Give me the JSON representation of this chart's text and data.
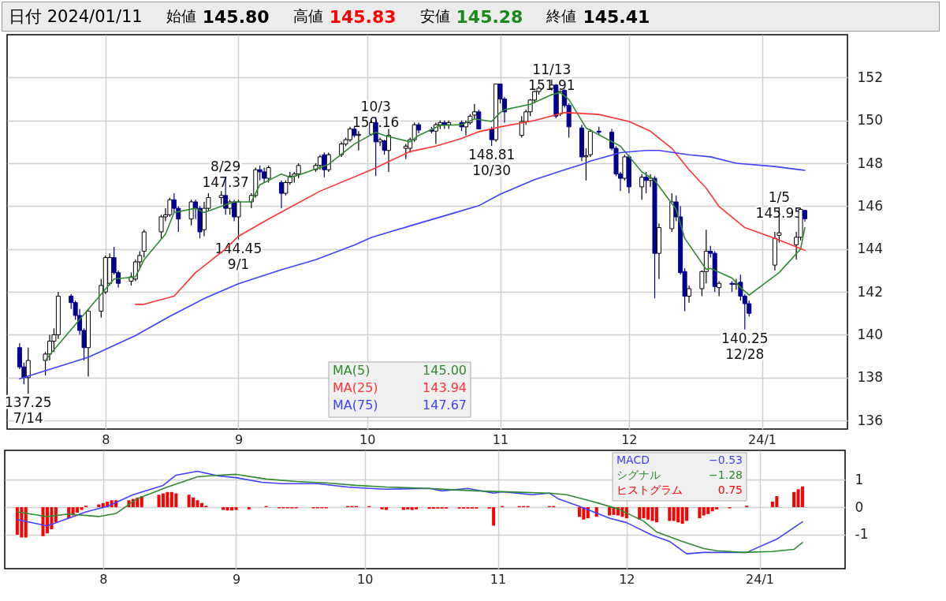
{
  "chart_data": [
    {
      "type": "candlestick",
      "title": "日付 2024/01/11",
      "subtitle": "始値 145.80 高値 145.83 安値 145.28 終値 145.41",
      "x": [
        "2023-07-12",
        "2023-07-13",
        "2023-07-14",
        "2023-07-18",
        "2023-07-19",
        "2023-07-20",
        "2023-07-21",
        "2023-07-24",
        "2023-07-25",
        "2023-07-26",
        "2023-07-27",
        "2023-07-28",
        "2023-07-31",
        "2023-08-01",
        "2023-08-02",
        "2023-08-03",
        "2023-08-04",
        "2023-08-07",
        "2023-08-08",
        "2023-08-09",
        "2023-08-10",
        "2023-08-14",
        "2023-08-15",
        "2023-08-16",
        "2023-08-17",
        "2023-08-18",
        "2023-08-21",
        "2023-08-22",
        "2023-08-23",
        "2023-08-24",
        "2023-08-25",
        "2023-08-28",
        "2023-08-29",
        "2023-08-30",
        "2023-08-31",
        "2023-09-01",
        "2023-09-04",
        "2023-09-05",
        "2023-09-06",
        "2023-09-07",
        "2023-09-08",
        "2023-09-11",
        "2023-09-12",
        "2023-09-13",
        "2023-09-14",
        "2023-09-15",
        "2023-09-19",
        "2023-09-20",
        "2023-09-21",
        "2023-09-22",
        "2023-09-25",
        "2023-09-26",
        "2023-09-27",
        "2023-09-28",
        "2023-09-29",
        "2023-10-02",
        "2023-10-03",
        "2023-10-04",
        "2023-10-05",
        "2023-10-06",
        "2023-10-10",
        "2023-10-11",
        "2023-10-12",
        "2023-10-13",
        "2023-10-16",
        "2023-10-17",
        "2023-10-18",
        "2023-10-19",
        "2023-10-20",
        "2023-10-23",
        "2023-10-24",
        "2023-10-25",
        "2023-10-26",
        "2023-10-27",
        "2023-10-30",
        "2023-10-31",
        "2023-11-01",
        "2023-11-02",
        "2023-11-06",
        "2023-11-07",
        "2023-11-08",
        "2023-11-09",
        "2023-11-10",
        "2023-11-13",
        "2023-11-14",
        "2023-11-15",
        "2023-11-16",
        "2023-11-17",
        "2023-11-20",
        "2023-11-21",
        "2023-11-22",
        "2023-11-24",
        "2023-11-27",
        "2023-11-28",
        "2023-11-29",
        "2023-11-30",
        "2023-12-01",
        "2023-12-04",
        "2023-12-05",
        "2023-12-06",
        "2023-12-07",
        "2023-12-08",
        "2023-12-11",
        "2023-12-12",
        "2023-12-13",
        "2023-12-14",
        "2023-12-15",
        "2023-12-18",
        "2023-12-19",
        "2023-12-20",
        "2023-12-21",
        "2023-12-22",
        "2023-12-25",
        "2023-12-26",
        "2023-12-27",
        "2023-12-28",
        "2023-12-29",
        "2024-01-04",
        "2024-01-05",
        "2024-01-09",
        "2024-01-10",
        "2024-01-11"
      ],
      "ohlc": [
        [
          139.4,
          139.6,
          138.4,
          138.5
        ],
        [
          138.5,
          138.7,
          137.7,
          138.0
        ],
        [
          138.0,
          139.4,
          137.25,
          138.8
        ],
        [
          138.8,
          139.2,
          138.1,
          139.1
        ],
        [
          139.1,
          140.0,
          138.8,
          139.7
        ],
        [
          139.7,
          140.3,
          139.2,
          140.0
        ],
        [
          140.0,
          142.0,
          139.8,
          141.8
        ],
        [
          141.8,
          141.9,
          141.2,
          141.5
        ],
        [
          141.5,
          141.6,
          140.7,
          140.9
        ],
        [
          140.9,
          141.2,
          140.0,
          140.2
        ],
        [
          140.2,
          140.3,
          138.8,
          139.4
        ],
        [
          139.4,
          141.2,
          138.05,
          141.1
        ],
        [
          141.1,
          142.6,
          140.8,
          142.3
        ],
        [
          142.0,
          143.7,
          141.9,
          143.6
        ],
        [
          142.4,
          143.8,
          142.3,
          143.6
        ],
        [
          143.6,
          144.1,
          142.8,
          142.9
        ],
        [
          142.9,
          143.0,
          142.2,
          142.4
        ],
        [
          142.5,
          142.9,
          142.3,
          142.7
        ],
        [
          142.6,
          143.5,
          142.5,
          143.4
        ],
        [
          143.4,
          143.9,
          143.1,
          143.7
        ],
        [
          143.9,
          144.9,
          143.6,
          144.8
        ],
        [
          144.8,
          145.6,
          144.5,
          145.5
        ],
        [
          145.5,
          145.9,
          145.3,
          145.6
        ],
        [
          145.6,
          146.4,
          145.5,
          146.3
        ],
        [
          146.3,
          146.6,
          145.7,
          145.9
        ],
        [
          145.9,
          146.0,
          144.8,
          145.4
        ],
        [
          145.4,
          146.3,
          145.1,
          146.2
        ],
        [
          146.2,
          146.3,
          145.4,
          145.9
        ],
        [
          145.9,
          146.0,
          144.5,
          144.8
        ],
        [
          144.9,
          146.2,
          144.6,
          145.9
        ],
        [
          145.9,
          146.6,
          145.8,
          146.4
        ],
        [
          146.4,
          146.7,
          146.1,
          146.5
        ],
        [
          146.5,
          147.37,
          145.6,
          145.9
        ],
        [
          145.9,
          146.3,
          145.6,
          146.2
        ],
        [
          146.2,
          146.3,
          145.3,
          145.5
        ],
        [
          145.5,
          146.3,
          144.45,
          146.2
        ],
        [
          146.2,
          146.6,
          145.9,
          146.5
        ],
        [
          146.5,
          147.8,
          146.4,
          147.7
        ],
        [
          147.7,
          147.9,
          147.2,
          147.6
        ],
        [
          147.6,
          147.8,
          147.1,
          147.3
        ],
        [
          147.3,
          147.9,
          147.1,
          147.8
        ],
        [
          147.1,
          147.2,
          145.9,
          146.6
        ],
        [
          146.6,
          147.2,
          146.5,
          147.1
        ],
        [
          147.1,
          147.6,
          147.0,
          147.4
        ],
        [
          147.4,
          147.6,
          147.1,
          147.5
        ],
        [
          147.5,
          148.0,
          147.3,
          147.9
        ],
        [
          147.7,
          148.0,
          147.6,
          147.9
        ],
        [
          147.9,
          148.4,
          147.7,
          148.3
        ],
        [
          148.4,
          148.5,
          147.35,
          147.7
        ],
        [
          147.7,
          148.5,
          147.6,
          148.4
        ],
        [
          148.4,
          149.0,
          148.3,
          148.9
        ],
        [
          148.9,
          149.2,
          148.8,
          149.1
        ],
        [
          149.1,
          149.7,
          149.0,
          149.6
        ],
        [
          149.6,
          149.7,
          149.2,
          149.3
        ],
        [
          149.3,
          149.5,
          148.6,
          149.35
        ],
        [
          149.35,
          150.0,
          149.3,
          149.9
        ],
        [
          149.9,
          150.16,
          147.4,
          149.0
        ],
        [
          149.0,
          149.2,
          148.8,
          149.1
        ],
        [
          149.05,
          149.1,
          148.4,
          148.6
        ],
        [
          148.6,
          149.6,
          147.6,
          149.3
        ],
        [
          148.7,
          148.9,
          148.2,
          148.8
        ],
        [
          148.7,
          149.2,
          148.5,
          149.1
        ],
        [
          149.1,
          149.9,
          149.0,
          149.8
        ],
        [
          149.8,
          149.9,
          149.4,
          149.55
        ],
        [
          149.55,
          149.7,
          149.4,
          149.5
        ],
        [
          149.5,
          149.9,
          148.9,
          149.8
        ],
        [
          149.8,
          150.0,
          149.6,
          149.9
        ],
        [
          149.9,
          150.0,
          149.6,
          149.8
        ],
        [
          149.8,
          150.0,
          149.6,
          149.9
        ],
        [
          149.9,
          150.0,
          149.5,
          149.7
        ],
        [
          149.7,
          150.0,
          149.3,
          149.9
        ],
        [
          149.9,
          150.3,
          149.8,
          150.2
        ],
        [
          150.25,
          150.77,
          150.1,
          150.4
        ],
        [
          150.4,
          150.5,
          149.6,
          149.6
        ],
        [
          149.6,
          149.7,
          148.81,
          149.1
        ],
        [
          149.1,
          151.7,
          149.0,
          151.7
        ],
        [
          151.7,
          151.7,
          150.8,
          151.0
        ],
        [
          151.0,
          151.1,
          149.9,
          150.4
        ],
        [
          149.3,
          150.2,
          149.2,
          149.95
        ],
        [
          149.95,
          150.5,
          149.8,
          150.4
        ],
        [
          150.4,
          151.0,
          150.2,
          150.95
        ],
        [
          150.95,
          151.4,
          150.8,
          151.35
        ],
        [
          151.35,
          151.6,
          151.2,
          151.5
        ],
        [
          151.5,
          151.91,
          151.4,
          151.65
        ],
        [
          151.65,
          151.7,
          150.1,
          150.2
        ],
        [
          150.3,
          151.4,
          150.2,
          151.35
        ],
        [
          151.4,
          151.45,
          150.6,
          150.7
        ],
        [
          150.7,
          150.8,
          149.2,
          149.7
        ],
        [
          149.65,
          149.8,
          148.1,
          148.3
        ],
        [
          148.3,
          148.7,
          147.2,
          148.35
        ],
        [
          148.4,
          149.6,
          148.3,
          149.5
        ],
        [
          149.5,
          149.7,
          149.3,
          149.45
        ],
        [
          149.45,
          149.6,
          148.6,
          148.7
        ],
        [
          148.7,
          148.8,
          147.4,
          147.5
        ],
        [
          147.5,
          147.6,
          146.7,
          147.3
        ],
        [
          147.3,
          148.4,
          147.2,
          148.3
        ],
        [
          148.3,
          148.4,
          146.6,
          146.9
        ],
        [
          146.9,
          147.5,
          146.3,
          147.35
        ],
        [
          147.35,
          147.6,
          146.6,
          147.2
        ],
        [
          147.2,
          147.5,
          146.9,
          147.3
        ],
        [
          147.3,
          147.4,
          141.7,
          143.8
        ],
        [
          143.8,
          145.2,
          142.6,
          145.0
        ],
        [
          144.95,
          146.6,
          144.8,
          146.2
        ],
        [
          146.2,
          146.5,
          145.3,
          145.5
        ],
        [
          145.5,
          146.0,
          142.8,
          142.9
        ],
        [
          142.95,
          143.1,
          141.1,
          141.8
        ],
        [
          141.8,
          142.3,
          141.5,
          142.15
        ],
        [
          142.15,
          143.0,
          141.8,
          142.95
        ],
        [
          142.95,
          144.9,
          142.4,
          143.9
        ],
        [
          143.9,
          144.15,
          143.6,
          143.8
        ],
        [
          143.8,
          143.9,
          142.0,
          142.25
        ],
        [
          142.2,
          142.5,
          141.8,
          142.4
        ],
        [
          142.4,
          142.5,
          142.0,
          142.35
        ],
        [
          142.35,
          142.6,
          142.1,
          142.4
        ],
        [
          142.45,
          142.8,
          141.6,
          141.8
        ],
        [
          141.8,
          141.9,
          140.25,
          141.45
        ],
        [
          141.45,
          141.6,
          140.85,
          141.0
        ],
        [
          143.25,
          144.8,
          143.0,
          144.5
        ],
        [
          144.64,
          145.95,
          144.3,
          144.76
        ],
        [
          144.2,
          144.8,
          143.5,
          144.55
        ],
        [
          144.55,
          145.9,
          144.4,
          145.85
        ],
        [
          145.8,
          145.83,
          145.28,
          145.41
        ]
      ],
      "series": [
        {
          "type": "line",
          "name": "MA(5)",
          "color": "#2e8b2e",
          "x": [
            "2023-07-18",
            "2023-07-20",
            "2023-08-03",
            "2023-08-08",
            "2023-08-10",
            "2023-08-15",
            "2023-08-17",
            "2023-08-22",
            "2023-08-24",
            "2023-08-28",
            "2023-08-31",
            "2023-09-04",
            "2023-09-06",
            "2023-09-11",
            "2023-09-13",
            "2023-09-15",
            "2023-09-22",
            "2023-09-28",
            "2023-10-03",
            "2023-10-05",
            "2023-10-11",
            "2023-10-13",
            "2023-10-18",
            "2023-10-23",
            "2023-10-26",
            "2023-10-30",
            "2023-11-01",
            "2023-11-02",
            "2023-11-08",
            "2023-11-13",
            "2023-11-15",
            "2023-11-17",
            "2023-11-21",
            "2023-11-29",
            "2023-12-04",
            "2023-12-06",
            "2023-12-07",
            "2023-12-12",
            "2023-12-14",
            "2023-12-19",
            "2023-12-20",
            "2023-12-25",
            "2023-12-27",
            "2023-12-29",
            "2024-01-05",
            "2024-01-10",
            "2024-01-11"
          ],
          "values": [
            138.8,
            139.3,
            142.6,
            142.7,
            143.5,
            144.7,
            145.7,
            145.9,
            145.7,
            146.0,
            146.2,
            146.2,
            147.0,
            147.5,
            147.35,
            147.45,
            147.95,
            148.9,
            149.45,
            149.3,
            149.0,
            149.3,
            149.77,
            149.8,
            150.07,
            149.95,
            150.37,
            150.5,
            150.75,
            151.2,
            151.3,
            150.98,
            149.65,
            148.8,
            147.6,
            147.35,
            147.2,
            145.85,
            144.5,
            143.05,
            143.1,
            142.65,
            142.2,
            141.85,
            142.9,
            144.0,
            145.0
          ]
        },
        {
          "type": "line",
          "name": "MA(25)",
          "color": "#ff3333",
          "x": [
            "2023-08-08",
            "2023-08-10",
            "2023-08-17",
            "2023-08-22",
            "2023-08-29",
            "2023-09-01",
            "2023-09-08",
            "2023-09-20",
            "2023-10-02",
            "2023-10-11",
            "2023-10-17",
            "2023-10-23",
            "2023-10-27",
            "2023-11-01",
            "2023-11-09",
            "2023-11-16",
            "2023-11-24",
            "2023-12-01",
            "2023-12-06",
            "2023-12-11",
            "2023-12-15",
            "2023-12-19",
            "2023-12-22",
            "2023-12-28",
            "2024-01-04",
            "2024-01-11"
          ],
          "values": [
            141.42,
            141.42,
            141.8,
            142.9,
            144.0,
            144.6,
            145.4,
            146.7,
            147.7,
            148.55,
            148.8,
            149.16,
            149.47,
            149.7,
            150.0,
            150.37,
            150.28,
            149.95,
            149.5,
            148.7,
            147.7,
            146.84,
            145.98,
            145.0,
            144.5,
            143.94
          ]
        },
        {
          "type": "line",
          "name": "MA(75)",
          "color": "#4040ff",
          "x": [
            "2023-07-12",
            "2023-07-28",
            "2023-08-08",
            "2023-08-16",
            "2023-08-24",
            "2023-09-01",
            "2023-09-11",
            "2023-09-19",
            "2023-09-28",
            "2023-10-02",
            "2023-10-11",
            "2023-10-19",
            "2023-10-27",
            "2023-11-01",
            "2023-11-09",
            "2023-11-16",
            "2023-11-20",
            "2023-11-22",
            "2023-11-29",
            "2023-12-05",
            "2023-12-08",
            "2023-12-15",
            "2023-12-20",
            "2023-12-26",
            "2024-01-04",
            "2024-01-11"
          ],
          "values": [
            137.95,
            138.95,
            139.96,
            140.86,
            141.69,
            142.38,
            143.03,
            143.5,
            144.18,
            144.54,
            145.08,
            145.55,
            146.02,
            146.56,
            147.24,
            147.7,
            147.95,
            148.1,
            148.5,
            148.6,
            148.6,
            148.4,
            148.3,
            148.0,
            147.85,
            147.67
          ]
        }
      ],
      "annotations": [
        {
          "text": "137.25 7/14",
          "x": "2023-07-14",
          "y": 137.25
        },
        {
          "text": "8/29 147.37",
          "x": "2023-08-29",
          "y": 147.37
        },
        {
          "text": "144.45 9/1",
          "x": "2023-09-01",
          "y": 144.45
        },
        {
          "text": "10/3 150.16",
          "x": "2023-10-03",
          "y": 150.16
        },
        {
          "text": "148.81 10/30",
          "x": "2023-10-30",
          "y": 148.81
        },
        {
          "text": "11/13 151.91",
          "x": "2023-11-13",
          "y": 151.91
        },
        {
          "text": "140.25 12/28",
          "x": "2023-12-28",
          "y": 140.25
        },
        {
          "text": "1/5 145.95",
          "x": "2024-01-05",
          "y": 145.95
        },
        "145.00",
        "143.94",
        "147.67"
      ],
      "xlim": [
        "2023-07-10",
        "2024-01-20"
      ],
      "xticks": [
        {
          "value": "2023-08-01",
          "label": "8"
        },
        {
          "value": "2023-09-01",
          "label": "9"
        },
        {
          "value": "2023-10-01",
          "label": "10"
        },
        {
          "value": "2023-11-01",
          "label": "11"
        },
        {
          "value": "2023-12-01",
          "label": "12"
        },
        {
          "value": "2024-01-01",
          "label": "24/1"
        }
      ],
      "ylim": [
        135.6,
        154.0
      ],
      "yticks": [
        136,
        138,
        140,
        142,
        144,
        146,
        148,
        150,
        152
      ],
      "grid": true,
      "legend": "bottom"
    },
    {
      "type": "line",
      "x": [
        "2023-07-12",
        "2023-07-13",
        "2023-07-14",
        "2023-07-18",
        "2023-07-19",
        "2023-07-20",
        "2023-07-21",
        "2023-07-24",
        "2023-07-25",
        "2023-07-26",
        "2023-07-27",
        "2023-07-28",
        "2023-07-31",
        "2023-08-01",
        "2023-08-02",
        "2023-08-03",
        "2023-08-04",
        "2023-08-07",
        "2023-08-08",
        "2023-08-09",
        "2023-08-10",
        "2023-08-14",
        "2023-08-15",
        "2023-08-16",
        "2023-08-17",
        "2023-08-18",
        "2023-08-21",
        "2023-08-22",
        "2023-08-23",
        "2023-08-24",
        "2023-08-25",
        "2023-08-28",
        "2023-08-29",
        "2023-08-30",
        "2023-08-31",
        "2023-09-01",
        "2023-09-04",
        "2023-09-05",
        "2023-09-06",
        "2023-09-07",
        "2023-09-08",
        "2023-09-11",
        "2023-09-12",
        "2023-09-13",
        "2023-09-14",
        "2023-09-15",
        "2023-09-19",
        "2023-09-20",
        "2023-09-21",
        "2023-09-22",
        "2023-09-25",
        "2023-09-26",
        "2023-09-27",
        "2023-09-28",
        "2023-09-29",
        "2023-10-02",
        "2023-10-03",
        "2023-10-04",
        "2023-10-05",
        "2023-10-06",
        "2023-10-10",
        "2023-10-11",
        "2023-10-12",
        "2023-10-13",
        "2023-10-16",
        "2023-10-17",
        "2023-10-18",
        "2023-10-19",
        "2023-10-20",
        "2023-10-23",
        "2023-10-24",
        "2023-10-25",
        "2023-10-26",
        "2023-10-27",
        "2023-10-30",
        "2023-10-31",
        "2023-11-01",
        "2023-11-02",
        "2023-11-06",
        "2023-11-07",
        "2023-11-08",
        "2023-11-09",
        "2023-11-10",
        "2023-11-13",
        "2023-11-14",
        "2023-11-15",
        "2023-11-16",
        "2023-11-17",
        "2023-11-20",
        "2023-11-21",
        "2023-11-22",
        "2023-11-24",
        "2023-11-27",
        "2023-11-28",
        "2023-11-29",
        "2023-11-30",
        "2023-12-01",
        "2023-12-04",
        "2023-12-05",
        "2023-12-06",
        "2023-12-07",
        "2023-12-08",
        "2023-12-11",
        "2023-12-12",
        "2023-12-13",
        "2023-12-14",
        "2023-12-15",
        "2023-12-18",
        "2023-12-19",
        "2023-12-20",
        "2023-12-21",
        "2023-12-22",
        "2023-12-25",
        "2023-12-26",
        "2023-12-27",
        "2023-12-28",
        "2023-12-29",
        "2024-01-04",
        "2024-01-05",
        "2024-01-09",
        "2024-01-10",
        "2024-01-11"
      ],
      "series": [
        {
          "name": "MACD",
          "color": "#4040ff",
          "x": [
            "2023-07-12",
            "2023-07-19",
            "2023-07-24",
            "2023-07-28",
            "2023-08-02",
            "2023-08-08",
            "2023-08-15",
            "2023-08-18",
            "2023-08-23",
            "2023-08-28",
            "2023-09-01",
            "2023-09-07",
            "2023-09-12",
            "2023-09-20",
            "2023-09-27",
            "2023-10-02",
            "2023-10-06",
            "2023-10-16",
            "2023-10-19",
            "2023-10-25",
            "2023-10-31",
            "2023-11-02",
            "2023-11-09",
            "2023-11-13",
            "2023-11-15",
            "2023-11-20",
            "2023-11-27",
            "2023-12-01",
            "2023-12-07",
            "2023-12-11",
            "2023-12-15",
            "2023-12-19",
            "2023-12-22",
            "2023-12-28",
            "2023-12-29",
            "2024-01-05",
            "2024-01-11"
          ],
          "values": [
            -0.45,
            -0.68,
            -0.4,
            -0.17,
            0.03,
            0.45,
            0.79,
            1.16,
            1.3,
            1.13,
            1.07,
            0.9,
            0.85,
            0.85,
            0.73,
            0.68,
            0.65,
            0.68,
            0.59,
            0.68,
            0.51,
            0.56,
            0.45,
            0.51,
            0.31,
            0.03,
            -0.4,
            -0.56,
            -1.02,
            -1.24,
            -1.69,
            -1.64,
            -1.64,
            -1.64,
            -1.64,
            -1.16,
            -0.53
          ]
        },
        {
          "name": "シグナル",
          "color": "#2e8b2e",
          "x": [
            "2023-07-12",
            "2023-07-19",
            "2023-07-24",
            "2023-07-31",
            "2023-08-04",
            "2023-08-09",
            "2023-08-16",
            "2023-08-23",
            "2023-08-28",
            "2023-09-01",
            "2023-09-08",
            "2023-09-15",
            "2023-09-22",
            "2023-09-29",
            "2023-10-06",
            "2023-10-16",
            "2023-10-23",
            "2023-10-27",
            "2023-11-06",
            "2023-11-13",
            "2023-11-17",
            "2023-11-22",
            "2023-11-29",
            "2023-12-05",
            "2023-12-08",
            "2023-12-14",
            "2023-12-19",
            "2023-12-22",
            "2023-12-28",
            "2024-01-04",
            "2024-01-09",
            "2024-01-11"
          ],
          "values": [
            -0.17,
            -0.34,
            -0.25,
            -0.34,
            -0.23,
            0.31,
            0.73,
            1.1,
            1.16,
            1.19,
            1.02,
            0.93,
            0.88,
            0.79,
            0.73,
            0.68,
            0.62,
            0.59,
            0.54,
            0.51,
            0.45,
            0.25,
            -0.06,
            -0.51,
            -0.9,
            -1.24,
            -1.5,
            -1.58,
            -1.64,
            -1.61,
            -1.53,
            -1.28
          ]
        },
        {
          "type": "bar",
          "name": "ヒストグラム",
          "color": "#ff0000",
          "values": [
            -1.0,
            -1.1,
            -1.1,
            -1.05,
            -0.95,
            -0.8,
            -0.55,
            -0.4,
            -0.3,
            -0.2,
            -0.1,
            0.05,
            0.1,
            0.15,
            0.2,
            0.25,
            0.25,
            0.25,
            0.3,
            0.35,
            0.4,
            0.45,
            0.5,
            0.55,
            0.55,
            0.5,
            0.45,
            0.35,
            0.25,
            0.15,
            0.05,
            null,
            -0.1,
            -0.12,
            -0.12,
            -0.1,
            -0.08,
            null,
            null,
            null,
            0.04,
            -0.04,
            -0.04,
            -0.04,
            -0.04,
            -0.04,
            -0.04,
            -0.04,
            -0.04,
            -0.04,
            null,
            null,
            0.04,
            0.04,
            0.04,
            0.04,
            null,
            null,
            -0.08,
            -0.1,
            -0.1,
            -0.08,
            -0.1,
            -0.08,
            -0.06,
            -0.06,
            -0.05,
            -0.05,
            -0.05,
            -0.05,
            -0.05,
            -0.05,
            -0.05,
            -0.05,
            -0.05,
            -0.67,
            null,
            0.04,
            0.04,
            0.04,
            0.04,
            null,
            null,
            0.04,
            0.04,
            null,
            null,
            null,
            -0.35,
            -0.45,
            -0.4,
            -0.35,
            -0.3,
            -0.28,
            -0.3,
            -0.35,
            -0.4,
            -0.45,
            -0.4,
            -0.45,
            -0.5,
            -0.55,
            -0.5,
            -0.5,
            -0.55,
            -0.6,
            -0.5,
            -0.4,
            -0.3,
            -0.25,
            -0.15,
            -0.08,
            -0.04,
            null,
            null,
            null,
            0.05,
            0.2,
            0.4,
            0.55,
            0.65,
            0.75
          ]
        }
      ],
      "annotations": [
        "−0.53",
        "−1.28",
        "0.75"
      ],
      "xlim": [
        "2023-07-10",
        "2024-01-20"
      ],
      "xticks": [
        {
          "value": "2023-08-01",
          "label": "8"
        },
        {
          "value": "2023-09-01",
          "label": "9"
        },
        {
          "value": "2023-10-01",
          "label": "10"
        },
        {
          "value": "2023-11-01",
          "label": "11"
        },
        {
          "value": "2023-12-01",
          "label": "12"
        },
        {
          "value": "2024-01-01",
          "label": "24/1"
        }
      ],
      "ylim": [
        -2.23,
        2.06
      ],
      "yticks": [
        -1,
        0,
        1
      ],
      "grid": true,
      "legend": "top right"
    }
  ]
}
